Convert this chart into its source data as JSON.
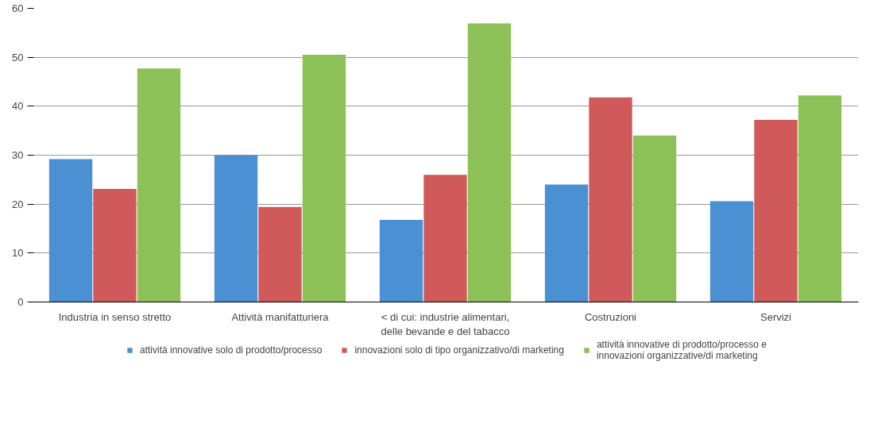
{
  "chart_data": {
    "type": "bar",
    "categories": [
      "Industria in senso stretto",
      "Attività manifatturiera",
      "< di cui: industrie alimentari,\ndelle bevande e del tabacco",
      "Costruzioni",
      "Servizi"
    ],
    "series": [
      {
        "name": "attività innovative solo di prodotto/processo",
        "color": "#4a90d2",
        "values": [
          29.2,
          30,
          16.8,
          24,
          20.6
        ]
      },
      {
        "name": "innovazioni solo di tipo organizzativo/di marketing",
        "color": "#d05a5a",
        "values": [
          23.1,
          19.4,
          26,
          41.8,
          37.2
        ]
      },
      {
        "name": "attività innovative di prodotto/processo e\ninnovazioni organizzative/di marketing",
        "color": "#8cc157",
        "values": [
          47.7,
          50.5,
          56.9,
          34,
          42.2
        ]
      }
    ],
    "ylim": [
      0,
      60
    ],
    "yticks": [
      0,
      10,
      20,
      30,
      40,
      50,
      60
    ],
    "grid": "y",
    "legend": "bottom"
  }
}
